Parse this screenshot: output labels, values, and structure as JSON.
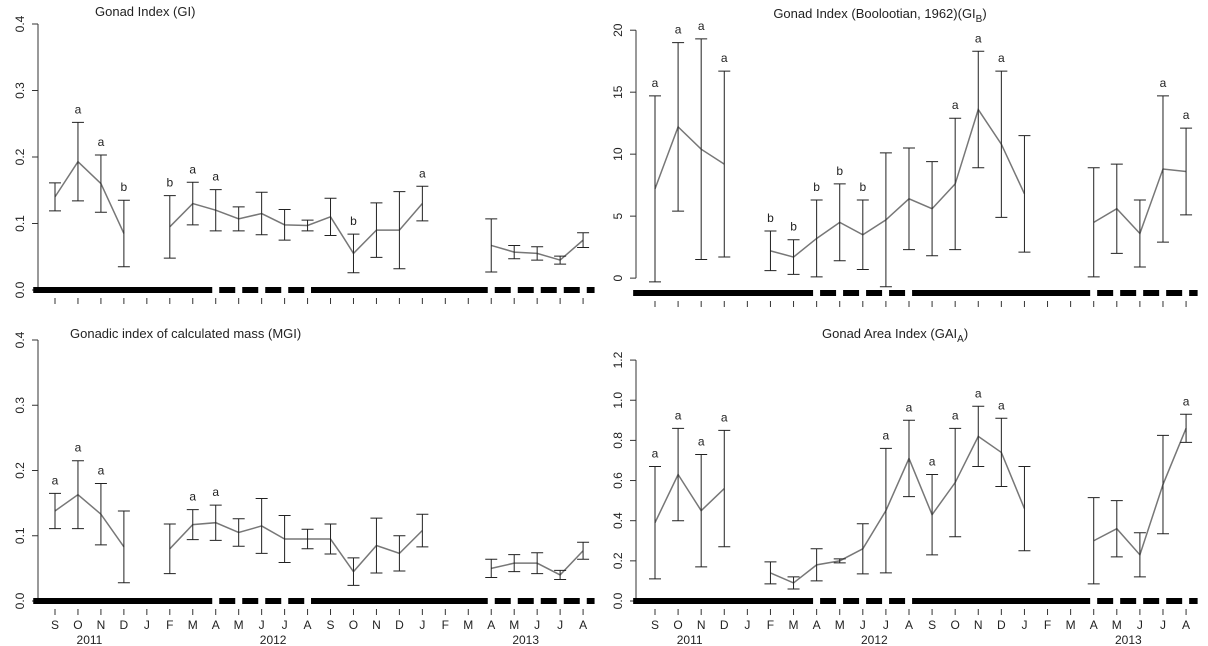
{
  "chart_data": [
    {
      "type": "line",
      "title": "Gonad Index  (GI)",
      "color": "#777777",
      "ylim": [
        0,
        0.4
      ],
      "yticks": [
        {
          "value": 0,
          "label": "0.0"
        },
        0.1,
        0.2,
        0.3,
        0.4
      ],
      "values": [
        0.14,
        0.193,
        0.16,
        0.085,
        null,
        0.095,
        0.13,
        0.12,
        0.107,
        0.115,
        0.098,
        0.097,
        0.11,
        0.055,
        0.09,
        0.09,
        0.13,
        null,
        null,
        0.067,
        0.057,
        0.055,
        0.045,
        0.075
      ],
      "errors": [
        0.021,
        0.059,
        0.043,
        0.05,
        null,
        0.047,
        0.032,
        0.031,
        0.018,
        0.032,
        0.023,
        0.008,
        0.028,
        0.029,
        0.041,
        0.058,
        0.026,
        null,
        null,
        0.04,
        0.01,
        0.01,
        0.006,
        0.011
      ],
      "letters": [
        null,
        "a",
        "a",
        "b",
        null,
        "b",
        "a",
        "a",
        null,
        null,
        null,
        null,
        null,
        "b",
        null,
        null,
        "a",
        null,
        null,
        null,
        null,
        null,
        null,
        null
      ]
    },
    {
      "type": "line",
      "title": "Gonad Index (Boolootian, 1962)(GI",
      "title_sub": "B",
      "title_end": ")",
      "color": "#777777",
      "ylim": [
        -1.2,
        20.5
      ],
      "yticks": [
        0,
        5,
        10,
        15,
        20
      ],
      "values": [
        7.2,
        12.2,
        10.4,
        9.2,
        null,
        2.2,
        1.7,
        3.2,
        4.5,
        3.5,
        4.7,
        6.4,
        5.6,
        7.6,
        13.6,
        10.8,
        6.8,
        null,
        null,
        4.5,
        5.6,
        3.6,
        8.8,
        8.6
      ],
      "errors": [
        7.5,
        6.8,
        8.9,
        7.5,
        null,
        1.6,
        1.4,
        3.1,
        3.1,
        2.8,
        5.4,
        4.1,
        3.8,
        5.3,
        4.7,
        5.9,
        4.7,
        null,
        null,
        4.4,
        3.6,
        2.7,
        5.9,
        3.5
      ],
      "letters": [
        "a",
        "a",
        "a",
        "a",
        null,
        "b",
        "b",
        "b",
        "b",
        "b",
        null,
        null,
        null,
        "a",
        "a",
        "a",
        null,
        null,
        null,
        null,
        null,
        null,
        "a",
        "a"
      ]
    },
    {
      "type": "line",
      "title": "Gonadic index of calculated mass (MGI)",
      "color": "#777777",
      "ylim": [
        0,
        0.4
      ],
      "yticks": [
        {
          "value": 0,
          "label": "0.0"
        },
        0.1,
        0.2,
        0.3,
        0.4
      ],
      "values": [
        0.138,
        0.163,
        0.133,
        0.083,
        null,
        0.08,
        0.117,
        0.12,
        0.105,
        0.115,
        0.095,
        0.095,
        0.095,
        0.045,
        0.085,
        0.073,
        0.108,
        null,
        null,
        0.05,
        0.058,
        0.058,
        0.04,
        0.077
      ],
      "errors": [
        0.027,
        0.052,
        0.047,
        0.055,
        null,
        0.038,
        0.023,
        0.027,
        0.021,
        0.042,
        0.036,
        0.015,
        0.023,
        0.021,
        0.042,
        0.027,
        0.025,
        null,
        null,
        0.014,
        0.013,
        0.016,
        0.007,
        0.013
      ],
      "letters": [
        "a",
        "a",
        "a",
        null,
        null,
        null,
        "a",
        "a",
        null,
        null,
        null,
        null,
        null,
        null,
        null,
        null,
        null,
        null,
        null,
        null,
        null,
        null,
        null,
        null
      ],
      "categories": [
        "S",
        "O",
        "N",
        "D",
        "J",
        "F",
        "M",
        "A",
        "M",
        "J",
        "J",
        "A",
        "S",
        "O",
        "N",
        "D",
        "J",
        "F",
        "M",
        "A",
        "M",
        "J",
        "J",
        "A"
      ],
      "years": [
        "2011",
        "2012",
        "2013"
      ]
    },
    {
      "type": "line",
      "title": "Gonad Area Index  (GAI",
      "title_sub": "A",
      "title_end": ")",
      "color": "#777777",
      "ylim": [
        0,
        1.3
      ],
      "yticks": [
        {
          "value": 0,
          "label": "0.0"
        },
        0.2,
        0.4,
        0.6,
        0.8,
        {
          "value": 1,
          "label": "1.0"
        },
        1.2
      ],
      "values": [
        0.39,
        0.63,
        0.45,
        0.56,
        null,
        0.14,
        0.09,
        0.18,
        0.2,
        0.26,
        0.45,
        0.71,
        0.43,
        0.59,
        0.82,
        0.74,
        0.46,
        null,
        null,
        0.3,
        0.36,
        0.23,
        0.58,
        0.86
      ],
      "errors": [
        0.28,
        0.23,
        0.28,
        0.29,
        null,
        0.055,
        0.03,
        0.08,
        0.01,
        0.125,
        0.31,
        0.19,
        0.2,
        0.27,
        0.15,
        0.17,
        0.21,
        null,
        null,
        0.215,
        0.14,
        0.11,
        0.245,
        0.07
      ],
      "letters": [
        "a",
        "a",
        "a",
        "a",
        null,
        null,
        null,
        null,
        null,
        null,
        "a",
        "a",
        "a",
        "a",
        "a",
        "a",
        null,
        null,
        null,
        null,
        null,
        null,
        null,
        "a"
      ],
      "categories": [
        "S",
        "O",
        "N",
        "D",
        "J",
        "F",
        "M",
        "A",
        "M",
        "J",
        "J",
        "A",
        "S",
        "O",
        "N",
        "D",
        "J",
        "F",
        "M",
        "A",
        "M",
        "J",
        "J",
        "A"
      ],
      "years": [
        "2011",
        "2012",
        "2013"
      ]
    }
  ]
}
